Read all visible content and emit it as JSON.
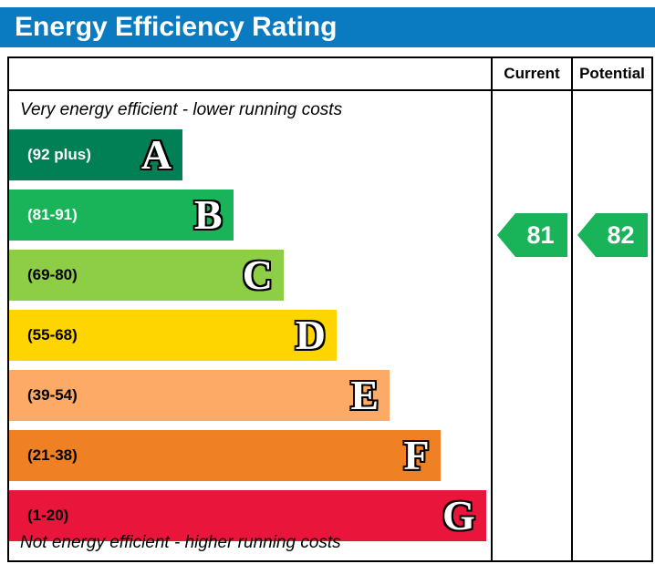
{
  "title": "Energy Efficiency Rating",
  "title_bg": "#0b7bc1",
  "headers": {
    "current": "Current",
    "potential": "Potential"
  },
  "chart_data": {
    "type": "bar",
    "title": "Energy Efficiency Rating",
    "top_caption": "Very energy efficient - lower running costs",
    "bottom_caption": "Not energy efficient - higher running costs",
    "columns": [
      "Current",
      "Potential"
    ],
    "bands": [
      {
        "letter": "A",
        "range": "(92 plus)",
        "color": "#008054",
        "width_pct": 36,
        "label_color": "#ffffff"
      },
      {
        "letter": "B",
        "range": "(81-91)",
        "color": "#19b459",
        "width_pct": 46.5,
        "label_color": "#ffffff"
      },
      {
        "letter": "C",
        "range": "(69-80)",
        "color": "#8dce46",
        "width_pct": 57,
        "label_color": "#000000"
      },
      {
        "letter": "D",
        "range": "(55-68)",
        "color": "#ffd500",
        "width_pct": 68,
        "label_color": "#000000"
      },
      {
        "letter": "E",
        "range": "(39-54)",
        "color": "#fcaa65",
        "width_pct": 79,
        "label_color": "#000000"
      },
      {
        "letter": "F",
        "range": "(21-38)",
        "color": "#ef8023",
        "width_pct": 89.5,
        "label_color": "#000000"
      },
      {
        "letter": "G",
        "range": "(1-20)",
        "color": "#e9153b",
        "width_pct": 99,
        "label_color": "#000000"
      }
    ],
    "current": {
      "value": 81,
      "band": "B",
      "color": "#19b459"
    },
    "potential": {
      "value": 82,
      "band": "B",
      "color": "#19b459"
    }
  }
}
